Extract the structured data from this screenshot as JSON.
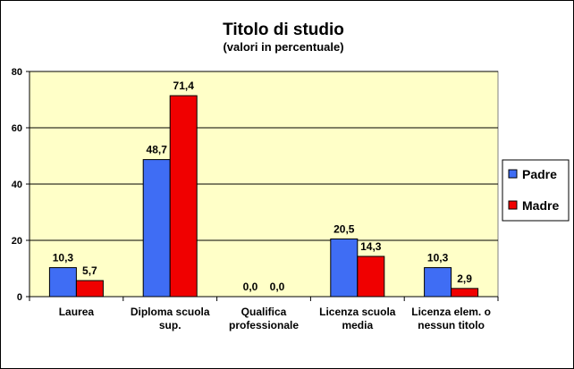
{
  "chart_data": {
    "type": "bar",
    "title": "Titolo di studio",
    "subtitle": "(valori in percentuale)",
    "xlabel": "",
    "ylabel": "",
    "ylim": [
      0,
      80
    ],
    "yticks": [
      0,
      20,
      40,
      60,
      80
    ],
    "grid": true,
    "legend_position": "right",
    "categories": [
      [
        "Laurea"
      ],
      [
        "Diploma scuola",
        "sup."
      ],
      [
        "Qualifica",
        "professionale"
      ],
      [
        "Licenza scuola",
        "media"
      ],
      [
        "Licenza elem. o",
        "nessun titolo"
      ]
    ],
    "series": [
      {
        "name": "Padre",
        "color": "#3f6df4",
        "values": [
          10.3,
          48.7,
          0.0,
          20.5,
          10.3
        ],
        "labels": [
          "10,3",
          "48,7",
          "0,0",
          "20,5",
          "10,3"
        ]
      },
      {
        "name": "Madre",
        "color": "#f00000",
        "values": [
          5.7,
          71.4,
          0.0,
          14.3,
          2.9
        ],
        "labels": [
          "5,7",
          "71,4",
          "0,0",
          "14,3",
          "2,9"
        ]
      }
    ],
    "plot_background": "#ffffc8"
  }
}
